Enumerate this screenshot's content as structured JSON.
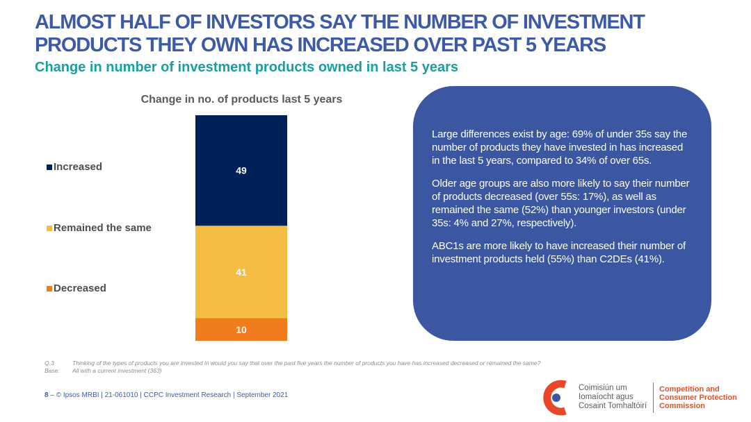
{
  "header": {
    "title_line1": "ALMOST HALF OF INVESTORS SAY THE NUMBER OF INVESTMENT",
    "title_line2": "PRODUCTS THEY OWN HAS INCREASED OVER PAST 5 YEARS",
    "subtitle": "Change in number of investment products owned in last 5 years"
  },
  "chart_data": {
    "type": "bar",
    "stacked": true,
    "title": "Change in no. of products last 5 years",
    "categories": [
      ""
    ],
    "series": [
      {
        "name": "Decreased",
        "values": [
          10
        ],
        "color": "#f07c1e"
      },
      {
        "name": "Remained the same",
        "values": [
          41
        ],
        "color": "#f5bc43"
      },
      {
        "name": "Increased",
        "values": [
          49
        ],
        "color": "#002157"
      }
    ],
    "legend_position": "left",
    "grid": false,
    "ylim": [
      0,
      100
    ]
  },
  "legend": {
    "items": [
      {
        "label": "Increased",
        "color": "#002157"
      },
      {
        "label": "Remained the same",
        "color": "#f5bc43"
      },
      {
        "label": "Decreased",
        "color": "#f07c1e"
      }
    ]
  },
  "callout": {
    "paragraphs": [
      "Large differences exist by age: 69% of under 35s say the number of products they have invested in has increased in the last 5 years, compared to 34% of over 65s.",
      "Older age groups are also more likely to say their number of products decreased (over 55s: 17%), as well as remained the same (52%) than younger investors (under 35s: 4% and 27%, respectively).",
      "ABC1s are more likely to have increased their number of investment products held (55%) than C2DEs (41%)."
    ],
    "color": "#3b57a2"
  },
  "footnote": {
    "q_key": "Q.3",
    "q_text": "Thinking of the types of products you are invested in would you say that over the past five years the number of products you have has increased decreased or remained the same?",
    "base_key": "Base:",
    "base_text": "All with a current investment (363)"
  },
  "footer": {
    "page": "8",
    "dash": "–",
    "text": "© Ipsos MRBI | 21-061010 | CCPC Investment Research | September 2021"
  },
  "logo": {
    "ga_line1": "Coimisiún um",
    "ga_line2": "Iomaíocht agus",
    "ga_line3": "Cosaint Tomhaltóirí",
    "en_line1": "Competition and",
    "en_line2": "Consumer Protection",
    "en_line3": "Commission",
    "icon": "ccpc-logo-icon"
  }
}
